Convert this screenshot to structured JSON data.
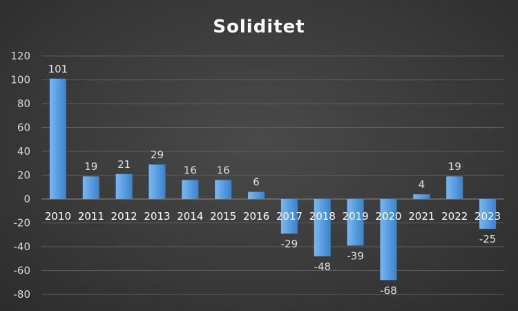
{
  "chart_data": {
    "type": "bar",
    "title": "Soliditet",
    "categories": [
      "2010",
      "2011",
      "2012",
      "2013",
      "2014",
      "2015",
      "2016",
      "2017",
      "2018",
      "2019",
      "2020",
      "2021",
      "2022",
      "2023"
    ],
    "values": [
      101,
      19,
      21,
      29,
      16,
      16,
      6,
      -29,
      -48,
      -39,
      -68,
      4,
      19,
      -25
    ],
    "ylim": [
      -80,
      120
    ],
    "yticks": [
      120,
      100,
      80,
      60,
      40,
      20,
      0,
      -20,
      -40,
      -60,
      -80
    ],
    "grid": true,
    "legend": "none",
    "colors": {
      "bar_top": "#6aaee8",
      "bar_bottom": "#2f77c4"
    }
  }
}
